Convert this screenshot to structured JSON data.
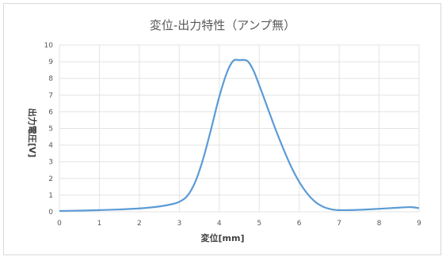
{
  "chart_data": {
    "type": "line",
    "title": "変位-出力特性（アンプ無）",
    "xlabel": "変位[mm]",
    "ylabel": "出力電圧[V]",
    "xlim": [
      0,
      9
    ],
    "ylim": [
      0,
      10
    ],
    "x_ticks": [
      "0",
      "1",
      "2",
      "3",
      "4",
      "5",
      "6",
      "7",
      "8",
      "9"
    ],
    "y_ticks": [
      "0",
      "1",
      "2",
      "3",
      "4",
      "5",
      "6",
      "7",
      "8",
      "9",
      "10"
    ],
    "grid": true,
    "line_color": "#5b9bd5",
    "series": [
      {
        "x": [
          0,
          0.5,
          1,
          1.5,
          2,
          2.5,
          2.8,
          3.0,
          3.2,
          3.4,
          3.6,
          3.8,
          4.0,
          4.2,
          4.35,
          4.5,
          4.7,
          4.85,
          5.0,
          5.2,
          5.4,
          5.6,
          5.8,
          6.0,
          6.2,
          6.4,
          6.6,
          6.8,
          7.0,
          7.5,
          8.0,
          8.5,
          8.8,
          9.0
        ],
        "y": [
          0.05,
          0.07,
          0.1,
          0.14,
          0.2,
          0.32,
          0.45,
          0.6,
          0.95,
          1.8,
          3.2,
          5.0,
          6.9,
          8.4,
          9.05,
          9.1,
          9.05,
          8.5,
          7.6,
          6.3,
          5.0,
          3.8,
          2.7,
          1.8,
          1.1,
          0.6,
          0.3,
          0.15,
          0.1,
          0.12,
          0.18,
          0.25,
          0.28,
          0.22
        ]
      }
    ]
  }
}
